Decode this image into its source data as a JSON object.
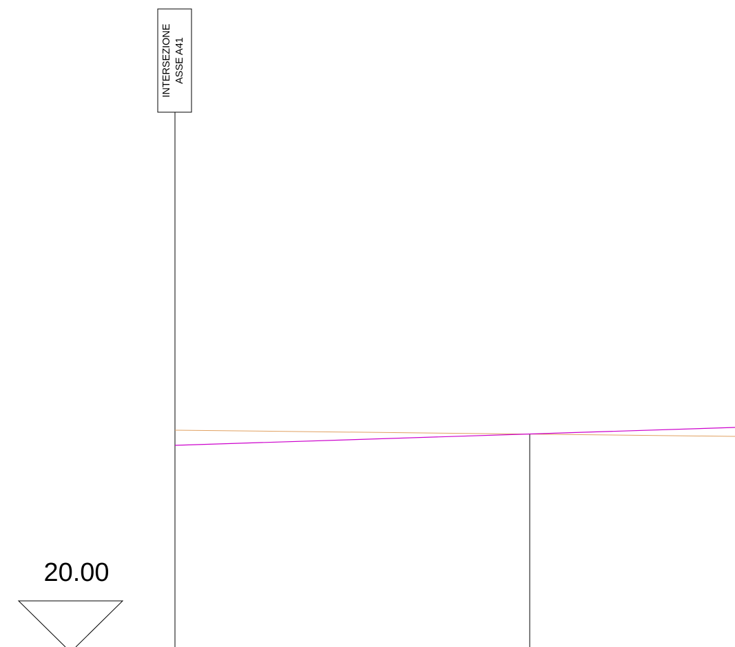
{
  "axis_label": {
    "line1": "INTERSEZIONE",
    "line2": "ASSE  A41"
  },
  "elevation": {
    "value": "20.00"
  },
  "colors": {
    "background": "#ffffff",
    "line_black": "#000000",
    "line_orange": "#e0a060",
    "line_magenta": "#cc00cc"
  }
}
